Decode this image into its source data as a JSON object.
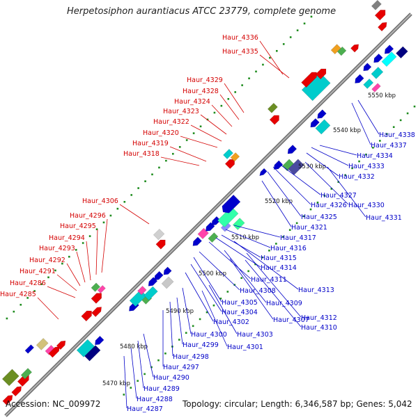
{
  "title": "Herpetosiphon aurantiacus ATCC 23779, complete genome",
  "footer": {
    "accession": "Accession: NC_009972",
    "summary": "Topology: circular; Length: 6,346,587 bp; Genes: 5,042"
  },
  "colors": {
    "plus_strand_label": "#d40000",
    "minus_strand_label": "#0000c8",
    "backbone": "#8c8c8c",
    "ticks": "#1e8c1e"
  },
  "scale_labels": [
    "5470 kbp",
    "5480 kbp",
    "5490 kbp",
    "5500 kbp",
    "5510 kbp",
    "5520 kbp",
    "5530 kbp",
    "5540 kbp",
    "5550 kbp"
  ],
  "plus_strand_genes": [
    "Haur_4336",
    "Haur_4335",
    "Haur_4329",
    "Haur_4328",
    "Haur_4324",
    "Haur_4323",
    "Haur_4322",
    "Haur_4320",
    "Haur_4319",
    "Haur_4318",
    "Haur_4306",
    "Haur_4296",
    "Haur_4295",
    "Haur_4294",
    "Haur_4293",
    "Haur_4292",
    "Haur_4291",
    "Haur_4286",
    "Haur_4285"
  ],
  "minus_strand_genes": [
    "Haur_4338",
    "Haur_4337",
    "Haur_4334",
    "Haur_4333",
    "Haur_4332",
    "Haur_4327",
    "Haur_4326",
    "Haur_4330",
    "Haur_4325",
    "Haur_4331",
    "Haur_4321",
    "Haur_4317",
    "Haur_4316",
    "Haur_4315",
    "Haur_4314",
    "Haur_4311",
    "Haur_4313",
    "Haur_4308",
    "Haur_4305",
    "Haur_4309",
    "Haur_4304",
    "Haur_4307",
    "Haur_4312",
    "Haur_4302",
    "Haur_4310",
    "Haur_4303",
    "Haur_4300",
    "Haur_4301",
    "Haur_4299",
    "Haur_4298",
    "Haur_4297",
    "Haur_4290",
    "Haur_4289",
    "Haur_4288",
    "Haur_4287"
  ]
}
